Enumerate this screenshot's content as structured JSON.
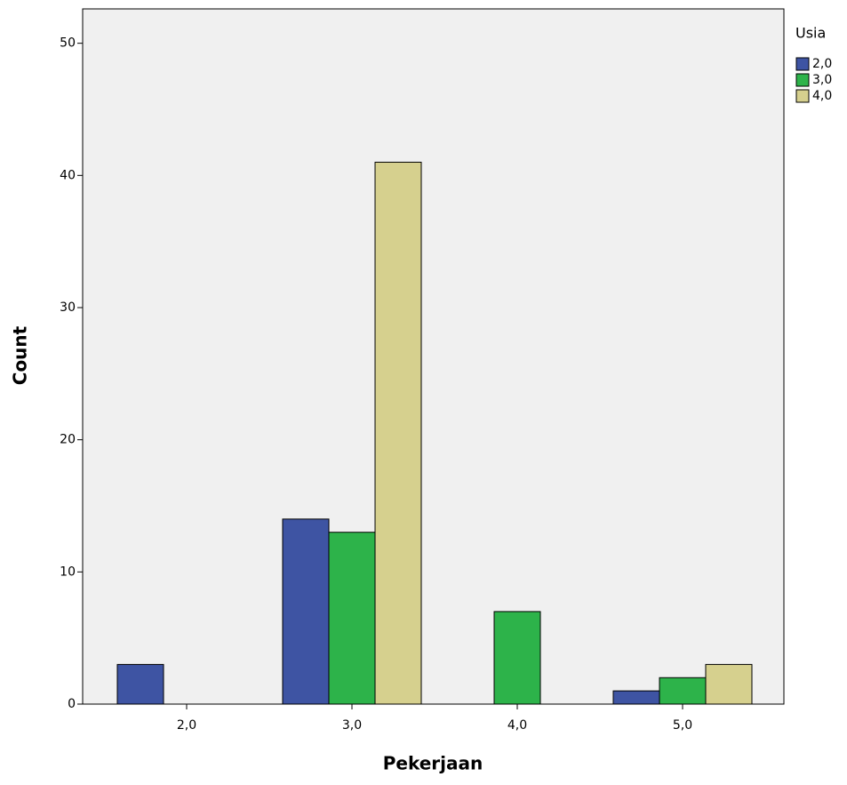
{
  "chart_data": {
    "type": "bar",
    "categories": [
      "2,0",
      "3,0",
      "4,0",
      "5,0"
    ],
    "series": [
      {
        "name": "2,0",
        "color": "#3e54a3",
        "values": [
          3,
          14,
          null,
          1
        ]
      },
      {
        "name": "3,0",
        "color": "#2db34a",
        "values": [
          null,
          13,
          7,
          2
        ]
      },
      {
        "name": "4,0",
        "color": "#d6d08e",
        "values": [
          null,
          41,
          null,
          3
        ]
      }
    ],
    "legend_title": "Usia",
    "legend": "right",
    "x_label": "Pekerjaan",
    "y_label": "Count",
    "ylim": [
      0,
      52.6
    ],
    "yticks": [
      0,
      10,
      20,
      30,
      40,
      50
    ]
  }
}
